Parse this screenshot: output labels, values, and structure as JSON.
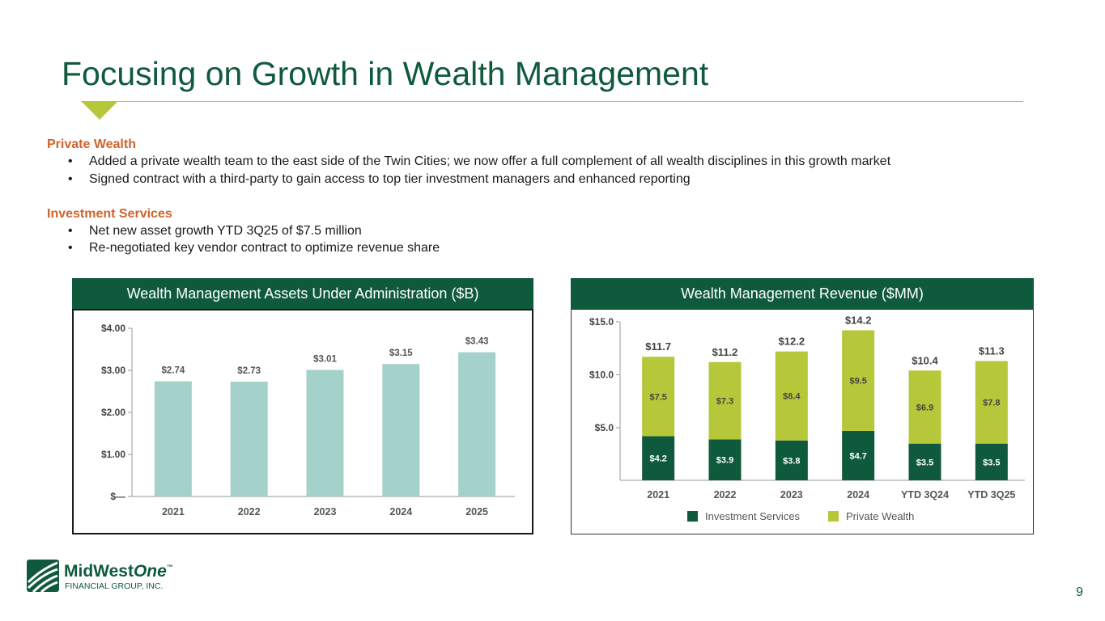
{
  "slide": {
    "title": "Focusing on Growth in Wealth Management",
    "page_number": "9"
  },
  "sections": [
    {
      "heading": "Private Wealth",
      "bullets": [
        "Added a private wealth team to the east side of the Twin Cities; we now offer a full complement of all wealth disciplines in this growth market",
        "Signed contract with a third-party to gain access to top tier investment managers and enhanced reporting"
      ]
    },
    {
      "heading": "Investment Services",
      "bullets": [
        "Net new asset growth YTD 3Q25 of $7.5 million",
        "Re-negotiated key vendor contract to optimize revenue share"
      ]
    }
  ],
  "logo": {
    "name_part1": "MidWest",
    "name_part2": "One",
    "tm": "™",
    "subtitle": "FINANCIAL GROUP, INC."
  },
  "colors": {
    "brand_green": "#0f5a3c",
    "accent_lime": "#b6c83a",
    "section_orange": "#d0632a",
    "aua_bar": "#a4d2cb"
  },
  "chart_data": [
    {
      "type": "bar",
      "title": "Wealth Management Assets Under Administration ($B)",
      "categories": [
        "2021",
        "2022",
        "2023",
        "2024",
        "2025"
      ],
      "values": [
        2.74,
        2.73,
        3.01,
        3.15,
        3.43
      ],
      "value_labels": [
        "$2.74",
        "$2.73",
        "$3.01",
        "$3.15",
        "$3.43"
      ],
      "yticks": [
        0,
        1,
        2,
        3,
        4
      ],
      "ytick_labels": [
        "$—",
        "$1.00",
        "$2.00",
        "$3.00",
        "$4.00"
      ],
      "ylim": [
        0,
        4
      ],
      "xlabel": "",
      "ylabel": "",
      "grid": false,
      "color": "#a4d2cb"
    },
    {
      "type": "bar",
      "stacked": true,
      "title": "Wealth Management Revenue ($MM)",
      "categories": [
        "2021",
        "2022",
        "2023",
        "2024",
        "YTD 3Q24",
        "YTD 3Q25"
      ],
      "series": [
        {
          "name": "Investment Services",
          "values": [
            4.2,
            3.9,
            3.8,
            4.7,
            3.5,
            3.5
          ],
          "labels": [
            "$4.2",
            "$3.9",
            "$3.8",
            "$4.7",
            "$3.5",
            "$3.5"
          ],
          "color": "#0f5a3c"
        },
        {
          "name": "Private Wealth",
          "values": [
            7.5,
            7.3,
            8.4,
            9.5,
            6.9,
            7.8
          ],
          "labels": [
            "$7.5",
            "$7.3",
            "$8.4",
            "$9.5",
            "$6.9",
            "$7.8"
          ],
          "color": "#b6c83a"
        }
      ],
      "totals": [
        11.7,
        11.2,
        12.2,
        14.2,
        10.4,
        11.3
      ],
      "total_labels": [
        "$11.7",
        "$11.2",
        "$12.2",
        "$14.2",
        "$10.4",
        "$11.3"
      ],
      "yticks": [
        5,
        10,
        15
      ],
      "ytick_labels": [
        "$5.0",
        "$10.0",
        "$15.0"
      ],
      "ylim": [
        0,
        15
      ],
      "xlabel": "",
      "ylabel": "",
      "grid": false,
      "legend": "bottom-center"
    }
  ]
}
